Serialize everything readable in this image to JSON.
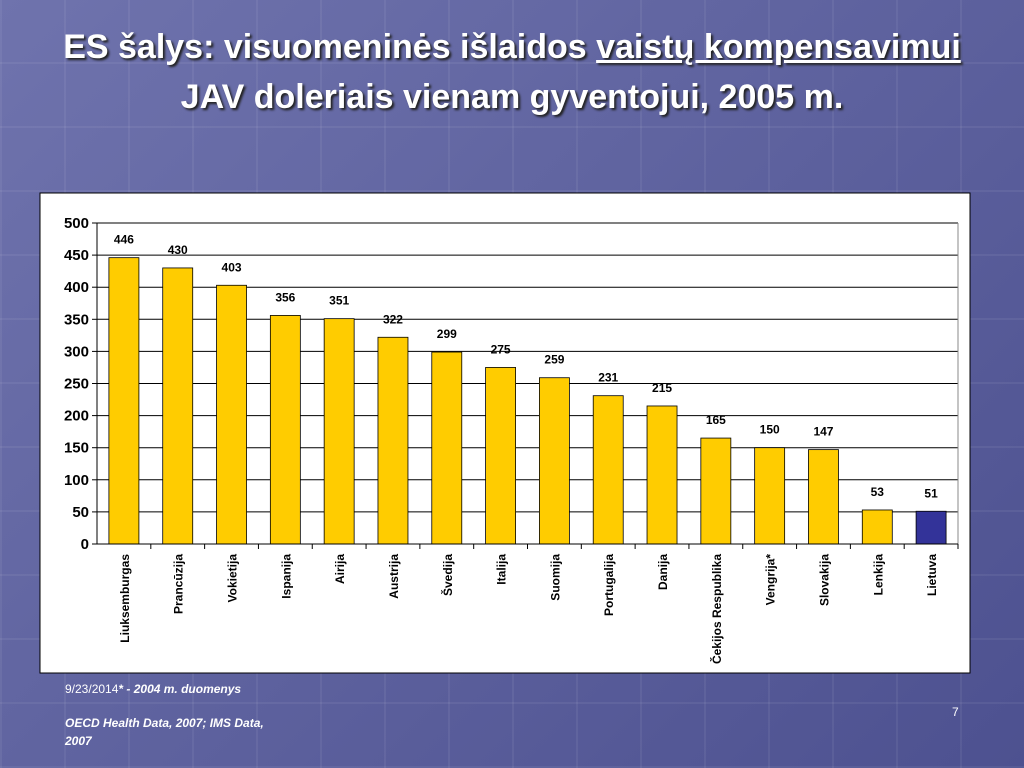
{
  "chart_data": {
    "type": "bar",
    "title": [
      "ES šalys: visuomeninės išlaidos ",
      "vaistų kompensavimui ",
      "JAV doleriais vienam gyventojui, 2005 m."
    ],
    "categories": [
      "Liuksemburgas",
      "Prancūzija",
      "Vokietija",
      "Ispanija",
      "Airija",
      "Austrija",
      "Švedija",
      "Italija",
      "Suomija",
      "Portugalija",
      "Danija",
      "Čekijos Respublika",
      "Vengrija*",
      "Slovakija",
      "Lenkija",
      "Lietuva"
    ],
    "values": [
      446,
      430,
      403,
      356,
      351,
      322,
      299,
      275,
      259,
      231,
      215,
      165,
      150,
      147,
      53,
      51
    ],
    "colors": [
      "#ffcc00",
      "#ffcc00",
      "#ffcc00",
      "#ffcc00",
      "#ffcc00",
      "#ffcc00",
      "#ffcc00",
      "#ffcc00",
      "#ffcc00",
      "#ffcc00",
      "#ffcc00",
      "#ffcc00",
      "#ffcc00",
      "#ffcc00",
      "#ffcc00",
      "#333399"
    ],
    "ylim": [
      0,
      500
    ],
    "yticks": [
      0,
      50,
      100,
      150,
      200,
      250,
      300,
      350,
      400,
      450,
      500
    ],
    "grid": true
  },
  "footer": {
    "date": "9/23/2014",
    "note": "* - 2004 m. duomenys",
    "source": "OECD Health Data, 2007; IMS Data, 2007",
    "page": "7"
  }
}
